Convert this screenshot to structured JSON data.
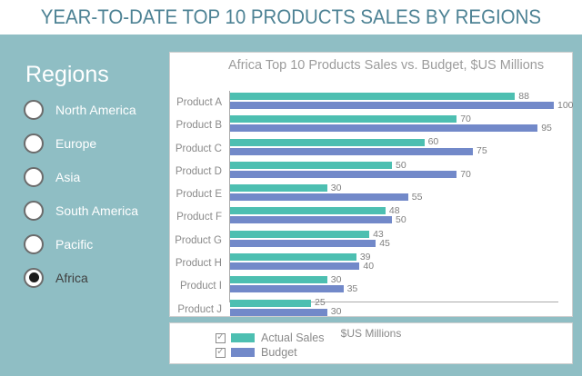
{
  "header": {
    "title": "YEAR-TO-DATE TOP 10 PRODUCTS SALES BY REGIONS"
  },
  "sidebar": {
    "title": "Regions",
    "options": [
      {
        "label": "North America",
        "selected": false
      },
      {
        "label": "Europe",
        "selected": false
      },
      {
        "label": "Asia",
        "selected": false
      },
      {
        "label": "South America",
        "selected": false
      },
      {
        "label": "Pacific",
        "selected": false
      },
      {
        "label": "Africa",
        "selected": true
      }
    ]
  },
  "chart_data": {
    "type": "bar",
    "orientation": "horizontal",
    "title": "Africa Top 10 Products Sales vs. Budget, $US Millions",
    "axis_caption": "$US Millions",
    "categories": [
      "Product A",
      "Product B",
      "Product C",
      "Product D",
      "Product E",
      "Product F",
      "Product G",
      "Product H",
      "Product I",
      "Product J"
    ],
    "series": [
      {
        "name": "Actual Sales",
        "color": "#4DBFB1",
        "values": [
          88,
          70,
          60,
          50,
          30,
          48,
          43,
          39,
          30,
          25
        ]
      },
      {
        "name": "Budget",
        "color": "#7289C9",
        "values": [
          100,
          95,
          75,
          70,
          55,
          50,
          45,
          40,
          35,
          30
        ]
      }
    ],
    "xlim": [
      0,
      100
    ],
    "grid": false,
    "legend_position": "bottom-left",
    "legend": [
      {
        "label": "Actual Sales",
        "checked": true,
        "color": "#4DBFB1"
      },
      {
        "label": "Budget",
        "checked": true,
        "color": "#7289C9"
      }
    ]
  },
  "colors": {
    "background_teal": "#8FBEC4",
    "header_title": "#4D8294",
    "actual_sales_bar": "#4DBFB1",
    "budget_bar": "#7289C9",
    "panel_white": "#FFFFFF"
  }
}
